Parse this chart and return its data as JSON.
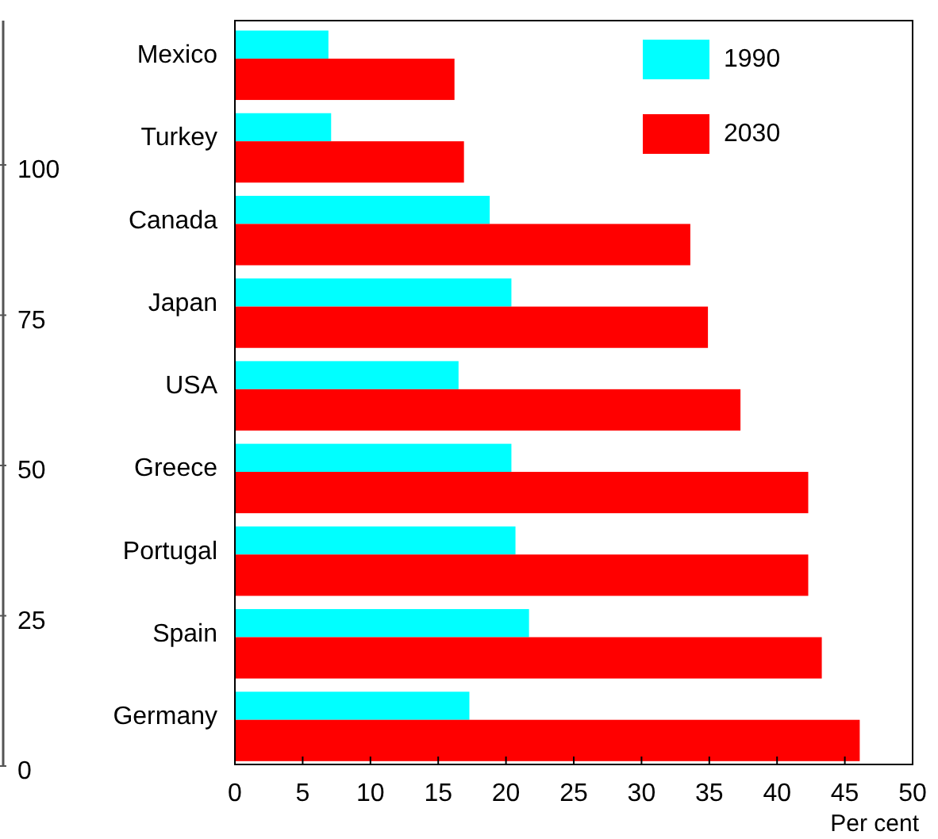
{
  "chart_data": {
    "type": "bar",
    "orientation": "horizontal",
    "xlabel": "Per cent",
    "categories": [
      "Mexico",
      "Turkey",
      "Canada",
      "Japan",
      "USA",
      "Greece",
      "Portugal",
      "Spain",
      "Germany"
    ],
    "series": [
      {
        "name": "1990",
        "color": "#00ffff",
        "values": [
          6.9,
          7.1,
          18.8,
          20.4,
          16.5,
          20.4,
          20.7,
          21.7,
          17.3
        ]
      },
      {
        "name": "2030",
        "color": "#ff0000",
        "values": [
          16.2,
          16.9,
          33.6,
          34.9,
          37.3,
          42.3,
          42.3,
          43.3,
          46.1
        ]
      }
    ],
    "xlim": [
      0,
      50
    ],
    "xticks": [
      0,
      5,
      10,
      15,
      20,
      25,
      30,
      35,
      40,
      45,
      50
    ],
    "y2lim": [
      0,
      124
    ],
    "y2ticks": [
      0,
      25,
      50,
      75,
      100
    ],
    "legend": "top right"
  }
}
